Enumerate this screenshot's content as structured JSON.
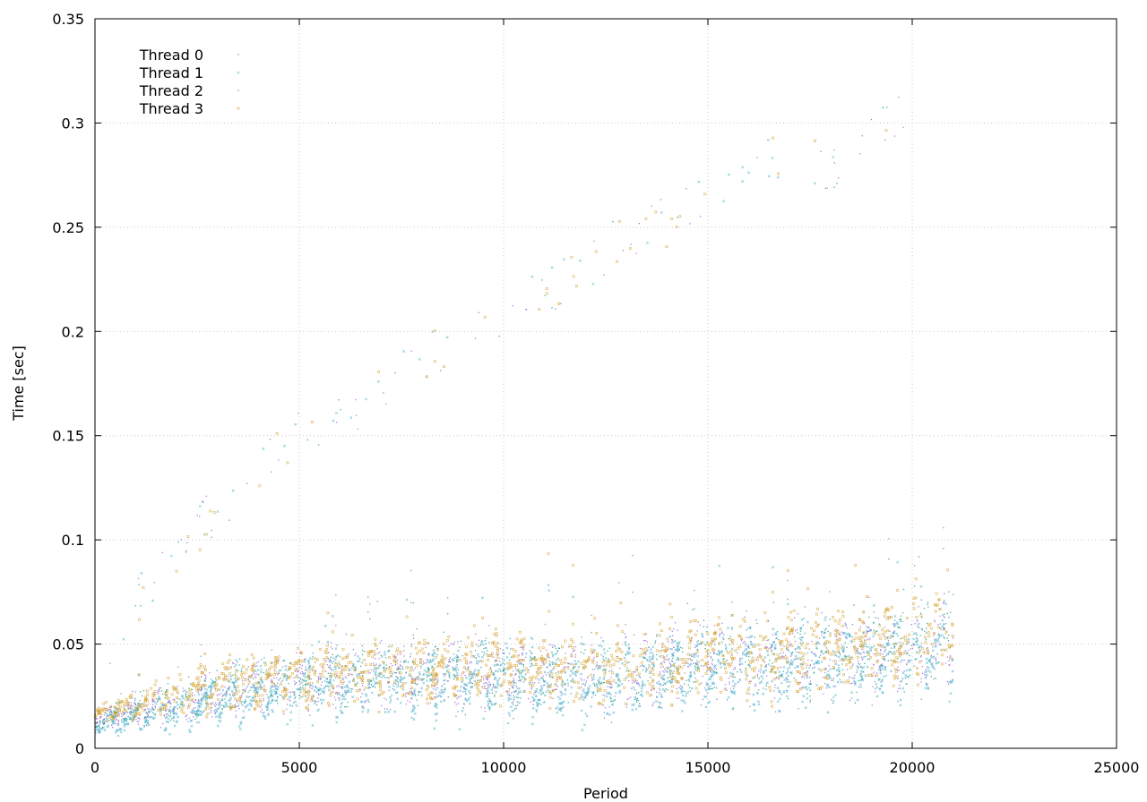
{
  "chart_data": {
    "type": "scatter",
    "title": "",
    "xlabel": "Period",
    "ylabel": "Time [sec]",
    "xlim": [
      0,
      25000
    ],
    "ylim": [
      0,
      0.35
    ],
    "x_ticks": [
      0,
      5000,
      10000,
      15000,
      20000,
      25000
    ],
    "y_ticks": [
      0,
      0.05,
      0.1,
      0.15,
      0.2,
      0.25,
      0.3,
      0.35
    ],
    "x_tick_labels": [
      "0",
      "5000",
      "10000",
      "15000",
      "20000",
      "25000"
    ],
    "y_tick_labels": [
      "0",
      "0.05",
      "0.1",
      "0.15",
      "0.2",
      "0.25",
      "0.3",
      "0.35"
    ],
    "grid": true,
    "legend_position": "top-left",
    "series": [
      {
        "name": "Thread 0",
        "color": "#2a9d8f",
        "marker": "dot"
      },
      {
        "name": "Thread 1",
        "color": "#4fb0d0",
        "marker": "cross"
      },
      {
        "name": "Thread 2",
        "color": "#9b6fd8",
        "marker": "dot"
      },
      {
        "name": "Thread 3",
        "color": "#d4a12f",
        "marker": "square"
      }
    ],
    "bulk_trend": {
      "x": [
        0,
        2500,
        5000,
        7500,
        10000,
        12500,
        15000,
        17500,
        20000,
        21000
      ],
      "median_y": [
        0.013,
        0.025,
        0.032,
        0.035,
        0.036,
        0.035,
        0.042,
        0.042,
        0.05,
        0.052
      ],
      "spread_y": [
        0.004,
        0.012,
        0.015,
        0.016,
        0.018,
        0.018,
        0.02,
        0.02,
        0.022,
        0.022
      ],
      "period": 600,
      "x_end": 21000
    },
    "upper_branch": {
      "x": [
        300,
        1600,
        2800,
        4400,
        5300,
        6400,
        7500,
        8900,
        10000,
        11500,
        13000,
        14400,
        15300,
        17000,
        18000,
        19000,
        20000
      ],
      "y": [
        0.04,
        0.09,
        0.11,
        0.14,
        0.155,
        0.16,
        0.185,
        0.19,
        0.205,
        0.225,
        0.245,
        0.255,
        0.27,
        0.285,
        0.28,
        0.295,
        0.31
      ]
    }
  }
}
